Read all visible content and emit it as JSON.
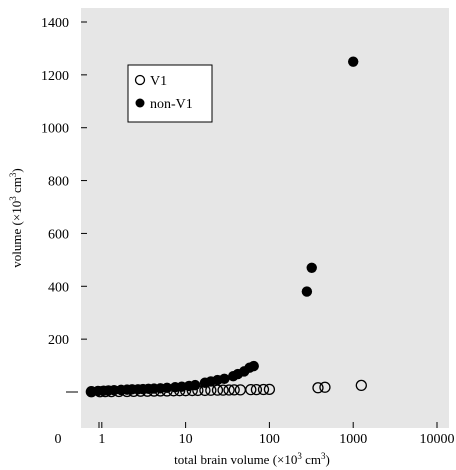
{
  "chart_data": {
    "type": "scatter",
    "xlabel_main": "total brain volume (×10",
    "xlabel_exp": "3",
    "xlabel_unit": " cm",
    "xlabel_unit_exp": "3",
    "xlabel_close": ")",
    "ylabel_main": "volume (×10",
    "ylabel_exp": "3",
    "ylabel_unit": " cm",
    "ylabel_unit_exp": "3",
    "ylabel_close": ")",
    "x_scale": "log",
    "x_ticks": [
      {
        "value": 0.3,
        "label": "0"
      },
      {
        "value": 1,
        "label": "1"
      },
      {
        "value": 10,
        "label": "10"
      },
      {
        "value": 100,
        "label": "100"
      },
      {
        "value": 1000,
        "label": "1000"
      },
      {
        "value": 10000,
        "label": "10000"
      }
    ],
    "y_ticks": [
      {
        "value": 200,
        "label": "200"
      },
      {
        "value": 400,
        "label": "400"
      },
      {
        "value": 600,
        "label": "600"
      },
      {
        "value": 800,
        "label": "800"
      },
      {
        "value": 1000,
        "label": "1000"
      },
      {
        "value": 1200,
        "label": "1200"
      },
      {
        "value": 1400,
        "label": "1400"
      }
    ],
    "y_zero_tick": 0,
    "xlim": [
      0.3,
      10000
    ],
    "ylim": [
      -100,
      1450
    ],
    "plot_background": "#e6e6e6",
    "grid": false,
    "legend_position": "top-left",
    "series": [
      {
        "name": "V1",
        "marker": "open-circle",
        "color": "#000000",
        "points": [
          [
            0.75,
            1
          ],
          [
            0.95,
            1
          ],
          [
            1.1,
            1.5
          ],
          [
            1.3,
            1.5
          ],
          [
            1.6,
            2
          ],
          [
            2.0,
            2
          ],
          [
            2.4,
            2.5
          ],
          [
            2.9,
            3
          ],
          [
            3.5,
            3
          ],
          [
            4.2,
            3.5
          ],
          [
            5.0,
            4
          ],
          [
            6.0,
            4
          ],
          [
            7.2,
            4.5
          ],
          [
            8.5,
            5
          ],
          [
            10,
            5
          ],
          [
            12,
            5.5
          ],
          [
            14,
            6
          ],
          [
            17,
            6
          ],
          [
            20,
            6.5
          ],
          [
            24,
            7
          ],
          [
            28,
            7
          ],
          [
            33,
            7.5
          ],
          [
            38,
            8
          ],
          [
            45,
            8
          ],
          [
            60,
            9
          ],
          [
            70,
            9
          ],
          [
            85,
            9.5
          ],
          [
            100,
            10
          ],
          [
            380,
            16
          ],
          [
            460,
            18
          ],
          [
            1250,
            25
          ]
        ]
      },
      {
        "name": "non-V1",
        "marker": "filled-circle",
        "color": "#000000",
        "points": [
          [
            0.75,
            3
          ],
          [
            0.9,
            4
          ],
          [
            1.05,
            5
          ],
          [
            1.2,
            6
          ],
          [
            1.4,
            7
          ],
          [
            1.7,
            8
          ],
          [
            2.0,
            9
          ],
          [
            2.3,
            10
          ],
          [
            2.7,
            10
          ],
          [
            3.1,
            11
          ],
          [
            3.6,
            12
          ],
          [
            4.2,
            13
          ],
          [
            5.0,
            14
          ],
          [
            6.0,
            16
          ],
          [
            7.5,
            18
          ],
          [
            9.0,
            20
          ],
          [
            11,
            23
          ],
          [
            13,
            26
          ],
          [
            17,
            35
          ],
          [
            20,
            40
          ],
          [
            24,
            45
          ],
          [
            29,
            50
          ],
          [
            37,
            60
          ],
          [
            42,
            68
          ],
          [
            50,
            78
          ],
          [
            58,
            92
          ],
          [
            65,
            98
          ],
          [
            280,
            380
          ],
          [
            320,
            470
          ],
          [
            1000,
            1250
          ]
        ]
      }
    ]
  }
}
